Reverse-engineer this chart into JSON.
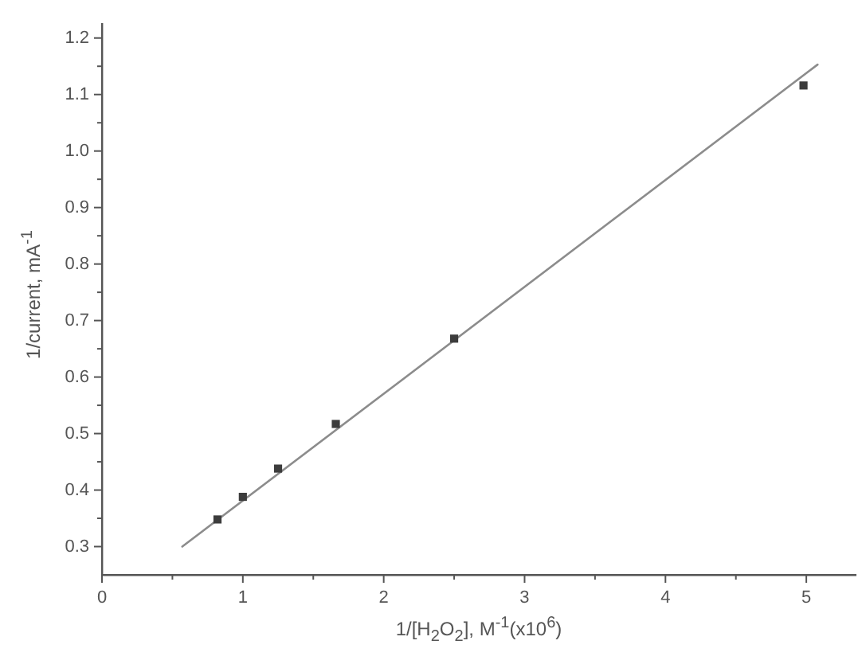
{
  "chart_data": {
    "type": "scatter",
    "xlabel": "1/[H$_{2}$O$_{2}$], M$^{-1}$(x10$^{6}$)",
    "ylabel": "1/current, mA$^{-1}$",
    "marker": "square",
    "series": [
      {
        "color": "#3c3c3c",
        "x": [
          0.82,
          1.0,
          1.25,
          1.66,
          2.5,
          4.98
        ],
        "values": [
          0.348,
          0.388,
          0.438,
          0.517,
          0.668,
          1.116
        ]
      },
      {
        "type": "line",
        "color": "#8c8c8c",
        "marker": "none",
        "x": [
          0.57,
          5.08
        ],
        "values": [
          0.3,
          1.153
        ]
      }
    ],
    "xlim": [
      0,
      5.35
    ],
    "xticks": [
      0,
      {
        "value": 0.5,
        "label": null
      },
      1,
      {
        "value": 1.5,
        "label": null
      },
      2,
      {
        "value": 2.5,
        "label": null
      },
      3,
      {
        "value": 3.5,
        "label": null
      },
      4,
      {
        "value": 4.5,
        "label": null
      },
      5
    ],
    "ylim": [
      0.25,
      1.225
    ],
    "yticks": [
      0.3,
      {
        "value": 0.35,
        "label": null
      },
      0.4,
      {
        "value": 0.45,
        "label": null
      },
      0.5,
      {
        "value": 0.55,
        "label": null
      },
      0.6,
      {
        "value": 0.65,
        "label": null
      },
      0.7,
      {
        "value": 0.75,
        "label": null
      },
      0.8,
      {
        "value": 0.85,
        "label": null
      },
      0.9,
      {
        "value": 0.95,
        "label": null
      },
      {
        "value": 1,
        "label": "1.0"
      },
      {
        "value": 1.05,
        "label": null
      },
      1.1,
      {
        "value": 1.15,
        "label": null
      },
      1.2
    ]
  }
}
